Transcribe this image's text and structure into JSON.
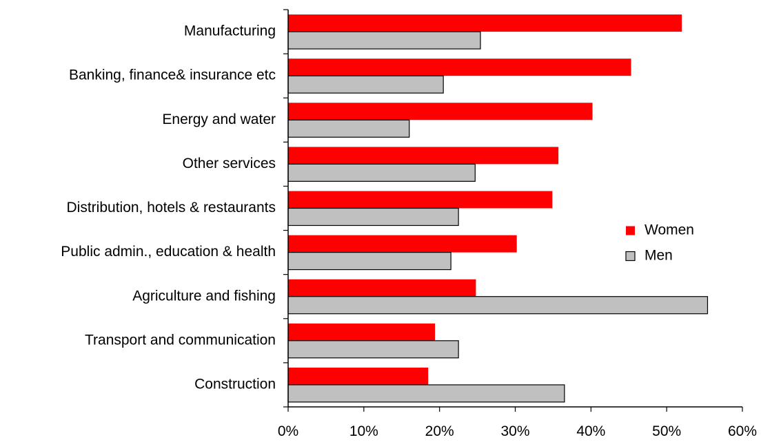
{
  "chart_data": {
    "type": "bar",
    "orientation": "horizontal",
    "title": "",
    "xlabel": "",
    "ylabel": "",
    "xlim": [
      0,
      60
    ],
    "x_ticks": [
      "0%",
      "10%",
      "20%",
      "30%",
      "40%",
      "50%",
      "60%"
    ],
    "grid": false,
    "legend_position": "right",
    "categories": [
      "Manufacturing",
      "Banking, finance& insurance etc",
      "Energy and water",
      "Other services",
      "Distribution, hotels & restaurants",
      "Public admin., education & health",
      "Agriculture and fishing",
      "Transport and communication",
      "Construction"
    ],
    "series": [
      {
        "name": "Women",
        "color": "#ff0000",
        "values": [
          52,
          45.3,
          40.2,
          35.7,
          34.9,
          30.2,
          24.8,
          19.4,
          18.5
        ]
      },
      {
        "name": "Men",
        "color": "#c0c0c0",
        "values": [
          25.4,
          20.5,
          16,
          24.7,
          22.5,
          21.5,
          55.4,
          22.5,
          36.5
        ]
      }
    ]
  }
}
